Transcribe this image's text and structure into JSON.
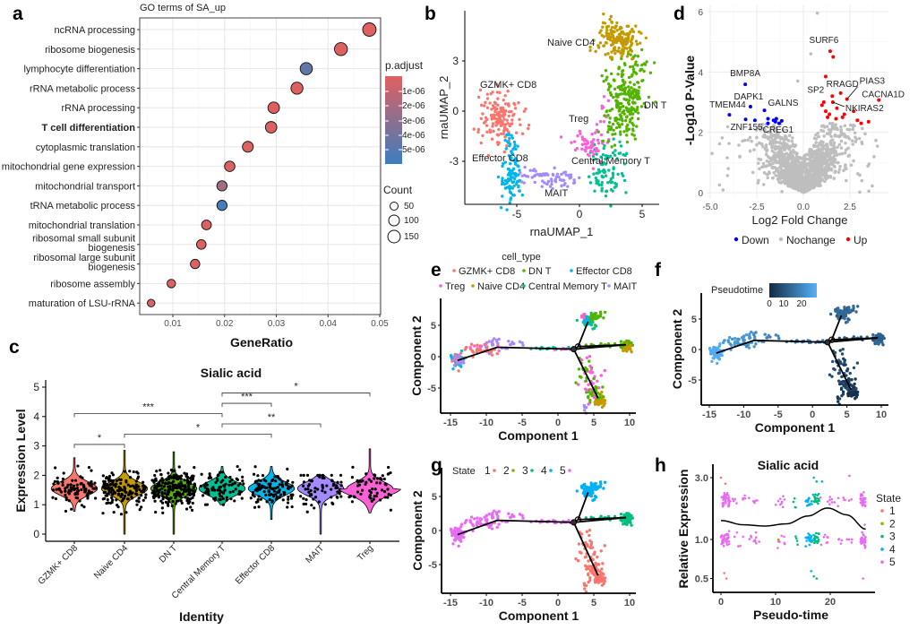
{
  "panel_labels": [
    "a",
    "b",
    "c",
    "d",
    "e",
    "f",
    "g",
    "h"
  ],
  "chart_data": [
    {
      "panel": "a",
      "type": "scatter",
      "title": "GO terms of SA_up",
      "xlabel": "GeneRatio",
      "xticks": [
        "0.01",
        "0.02",
        "0.03",
        "0.04",
        "0.05"
      ],
      "xlim": [
        0.004,
        0.05
      ],
      "grid": true,
      "highlight_color": "#ff0000",
      "terms": [
        {
          "label": "ncRNA processing",
          "gene_ratio": 0.048,
          "count": 150,
          "p_adjust": 1e-07
        },
        {
          "label": "ribosome biogenesis",
          "gene_ratio": 0.0425,
          "count": 133,
          "p_adjust": 1e-07
        },
        {
          "label": "lymphocyte differentiation",
          "gene_ratio": 0.0358,
          "count": 112,
          "p_adjust": 4.6e-06
        },
        {
          "label": "rRNA metabolic process",
          "gene_ratio": 0.034,
          "count": 106,
          "p_adjust": 1e-07
        },
        {
          "label": "rRNA processing",
          "gene_ratio": 0.0295,
          "count": 92,
          "p_adjust": 1e-07
        },
        {
          "label": "T cell differentiation",
          "gene_ratio": 0.029,
          "count": 90,
          "p_adjust": 2e-07,
          "highlight": true
        },
        {
          "label": "cytoplasmic translation",
          "gene_ratio": 0.0245,
          "count": 76,
          "p_adjust": 1e-07
        },
        {
          "label": "mitochondrial gene expression",
          "gene_ratio": 0.021,
          "count": 65,
          "p_adjust": 3e-07
        },
        {
          "label": "mitochondrial transport",
          "gene_ratio": 0.0195,
          "count": 61,
          "p_adjust": 2.2e-06
        },
        {
          "label": "tRNA metabolic process",
          "gene_ratio": 0.0195,
          "count": 61,
          "p_adjust": 5.7e-06
        },
        {
          "label": "mitochondrial translation",
          "gene_ratio": 0.0165,
          "count": 52,
          "p_adjust": 3e-07
        },
        {
          "label": [
            "ribosomal small subunit",
            "biogenesis"
          ],
          "gene_ratio": 0.0155,
          "count": 48,
          "p_adjust": 3e-07
        },
        {
          "label": [
            "ribosomal large subunit",
            "biogenesis"
          ],
          "gene_ratio": 0.0143,
          "count": 45,
          "p_adjust": 3e-07
        },
        {
          "label": "ribosome assembly",
          "gene_ratio": 0.0097,
          "count": 30,
          "p_adjust": 3e-07
        },
        {
          "label": "maturation of LSU-rRNA",
          "gene_ratio": 0.0058,
          "count": 18,
          "p_adjust": 3e-07
        }
      ],
      "color_legend": {
        "title": "p.adjust",
        "ticks": [
          "1e-06",
          "2e-06",
          "3e-06",
          "4e-06",
          "5e-06"
        ],
        "low_color": "#e0605f",
        "high_color": "#3b7ec0"
      },
      "size_legend": {
        "title": "Count",
        "ticks": [
          "50",
          "100",
          "150"
        ]
      }
    },
    {
      "panel": "b",
      "type": "scatter",
      "xlabel": "rnaUMAP_1",
      "ylabel": "rnaUMAP_2",
      "xticks": [
        "-5",
        "0",
        "5"
      ],
      "yticks": [
        "3",
        "0",
        "-3"
      ],
      "cluster_labels": [
        "Naive CD4",
        "GZMK+ CD8",
        "DN T",
        "Treg",
        "Effector CD8",
        "Central Memory T",
        "MAIT"
      ],
      "colors": {
        "GZMK+ CD8": "#F8766D",
        "Naive CD4": "#C49A00",
        "DN T": "#53B400",
        "Central Memory T": "#00C094",
        "Effector CD8": "#00B6EB",
        "MAIT": "#A58AFF",
        "Treg": "#FB61D7"
      }
    },
    {
      "panel": "c",
      "type": "violin",
      "title": "Sialic acid",
      "xlabel": "Identity",
      "ylabel": "Expression Level",
      "yticks": [
        "0",
        "1",
        "2",
        "3",
        "4",
        "5"
      ],
      "ylim": [
        0,
        5
      ],
      "categories": [
        "GZMK+ CD8",
        "Naive CD4",
        "DN T",
        "Central Memory T",
        "Effector CD8",
        "MAIT",
        "Treg"
      ],
      "colors": [
        "#F8766D",
        "#C49A00",
        "#53B400",
        "#00C094",
        "#00B6EB",
        "#A58AFF",
        "#FB61D7"
      ],
      "ranges": [
        [
          0.78,
          2.6
        ],
        [
          0,
          2.85
        ],
        [
          0,
          2.8
        ],
        [
          1.0,
          2.3
        ],
        [
          0.5,
          2.3
        ],
        [
          0,
          2.0
        ],
        [
          0.72,
          2.9
        ]
      ],
      "comparisons": [
        {
          "from": 0,
          "to": 1,
          "label": "*",
          "y": 3.05
        },
        {
          "from": 0,
          "to": 3,
          "label": "***",
          "y": 4.1
        },
        {
          "from": 1,
          "to": 4,
          "label": "*",
          "y": 3.4
        },
        {
          "from": 3,
          "to": 4,
          "label": "***",
          "y": 4.45
        },
        {
          "from": 3,
          "to": 5,
          "label": "**",
          "y": 3.75
        },
        {
          "from": 3,
          "to": 6,
          "label": "*",
          "y": 4.8
        }
      ]
    },
    {
      "panel": "d",
      "type": "scatter",
      "xlabel": "Log2 Fold Change",
      "ylabel": "-Log10 P-Value",
      "xticks": [
        "-5.0",
        "-2.5",
        "0.0",
        "2.5"
      ],
      "yticks": [
        "0",
        "2",
        "4",
        "6"
      ],
      "legend": [
        {
          "label": "Down",
          "color": "#0000ff"
        },
        {
          "label": "Nochange",
          "color": "#bebebe"
        },
        {
          "label": "Up",
          "color": "#ff0000"
        }
      ],
      "labeled_genes": [
        {
          "gene": "BMP8A",
          "x": -3.12,
          "y": 3.59,
          "group": "Down"
        },
        {
          "gene": "DAPK1",
          "x": -2.84,
          "y": 2.85,
          "group": "Down"
        },
        {
          "gene": "TMEM44",
          "x": -3.97,
          "y": 2.58,
          "group": "Down"
        },
        {
          "gene": "GALNS",
          "x": -2.09,
          "y": 2.73,
          "group": "Down"
        },
        {
          "gene": "ZNF155",
          "x": -3.1,
          "y": 2.43,
          "group": "Down"
        },
        {
          "gene": "CREG1",
          "x": -1.16,
          "y": 2.38,
          "group": "Down"
        },
        {
          "gene": "SURF6",
          "x": 1.44,
          "y": 4.69,
          "group": "Up"
        },
        {
          "gene": "SP2",
          "x": 1.55,
          "y": 3.2,
          "group": "Up"
        },
        {
          "gene": "RRAGD",
          "x": 2.0,
          "y": 3.3,
          "group": "Up"
        },
        {
          "gene": "PIAS3",
          "x": 2.34,
          "y": 3.1,
          "group": "Up"
        },
        {
          "gene": "CACNA1D",
          "x": 4.05,
          "y": 3.07,
          "group": "Up"
        },
        {
          "gene": "NKIRAS2",
          "x": 1.58,
          "y": 3.0,
          "group": "Up"
        }
      ]
    },
    {
      "panel": "e",
      "type": "scatter",
      "xlabel": "Component 1",
      "ylabel": "Component 2",
      "xticks": [
        "-15",
        "-10",
        "-5",
        "0",
        "5",
        "10"
      ],
      "yticks": [
        "5",
        "0",
        "-5"
      ],
      "legend_title": "cell_type",
      "legend": [
        {
          "label": "GZMK+ CD8",
          "color": "#F8766D"
        },
        {
          "label": "DN T",
          "color": "#53B400"
        },
        {
          "label": "Effector CD8",
          "color": "#00B6EB"
        },
        {
          "label": "Treg",
          "color": "#FB61D7"
        },
        {
          "label": "Naive CD4",
          "color": "#C49A00"
        },
        {
          "label": "Central Memory T",
          "color": "#00C094"
        },
        {
          "label": "MAIT",
          "color": "#A58AFF"
        }
      ],
      "trajectory": [
        [
          -14,
          -0.6
        ],
        [
          -8.5,
          1.5
        ],
        [
          2.2,
          1.2
        ],
        [
          2.8,
          1.6
        ],
        [
          4.2,
          5.6
        ],
        [
          2.8,
          1.6
        ],
        [
          9.5,
          1.9
        ],
        [
          2.2,
          1.2
        ],
        [
          5.6,
          -6.6
        ]
      ]
    },
    {
      "panel": "f",
      "type": "scatter",
      "xlabel": "Component 1",
      "ylabel": "Component 2",
      "xticks": [
        "-15",
        "-10",
        "-5",
        "0",
        "5",
        "10"
      ],
      "yticks": [
        "5",
        "0",
        "-5"
      ],
      "legend_title": "Pseudotime",
      "legend_ticks": [
        "0",
        "10",
        "20"
      ],
      "low_color": "#132b43",
      "high_color": "#56b1f7"
    },
    {
      "panel": "g",
      "type": "scatter",
      "xlabel": "Component 1",
      "ylabel": "Component 2",
      "xticks": [
        "-15",
        "-10",
        "-5",
        "0",
        "5",
        "10"
      ],
      "yticks": [
        "5",
        "0",
        "-5"
      ],
      "legend_title": "State",
      "legend": [
        {
          "label": "1",
          "color": "#F8766D"
        },
        {
          "label": "2",
          "color": "#A3A500"
        },
        {
          "label": "3",
          "color": "#00BF7D"
        },
        {
          "label": "4",
          "color": "#00B0F6"
        },
        {
          "label": "5",
          "color": "#E76BF3"
        }
      ]
    },
    {
      "panel": "h",
      "type": "scatter",
      "title": "Sialic acid",
      "xlabel": "Pseudo-time",
      "ylabel": "Relative Expression",
      "xticks": [
        "0",
        "10",
        "20"
      ],
      "yticks": [
        "3.0",
        "1.0",
        "0.5"
      ],
      "y_scale": "log",
      "legend_title": "State",
      "legend": [
        {
          "label": "1",
          "color": "#F8766D"
        },
        {
          "label": "2",
          "color": "#A3A500"
        },
        {
          "label": "3",
          "color": "#00BF7D"
        },
        {
          "label": "4",
          "color": "#00B0F6"
        },
        {
          "label": "5",
          "color": "#E76BF3"
        }
      ],
      "smooth_curve": [
        [
          0,
          1.4
        ],
        [
          4,
          1.3
        ],
        [
          8,
          1.27
        ],
        [
          12,
          1.32
        ],
        [
          16,
          1.52
        ],
        [
          19.5,
          1.75
        ],
        [
          23,
          1.55
        ],
        [
          26.5,
          1.2
        ]
      ]
    }
  ]
}
